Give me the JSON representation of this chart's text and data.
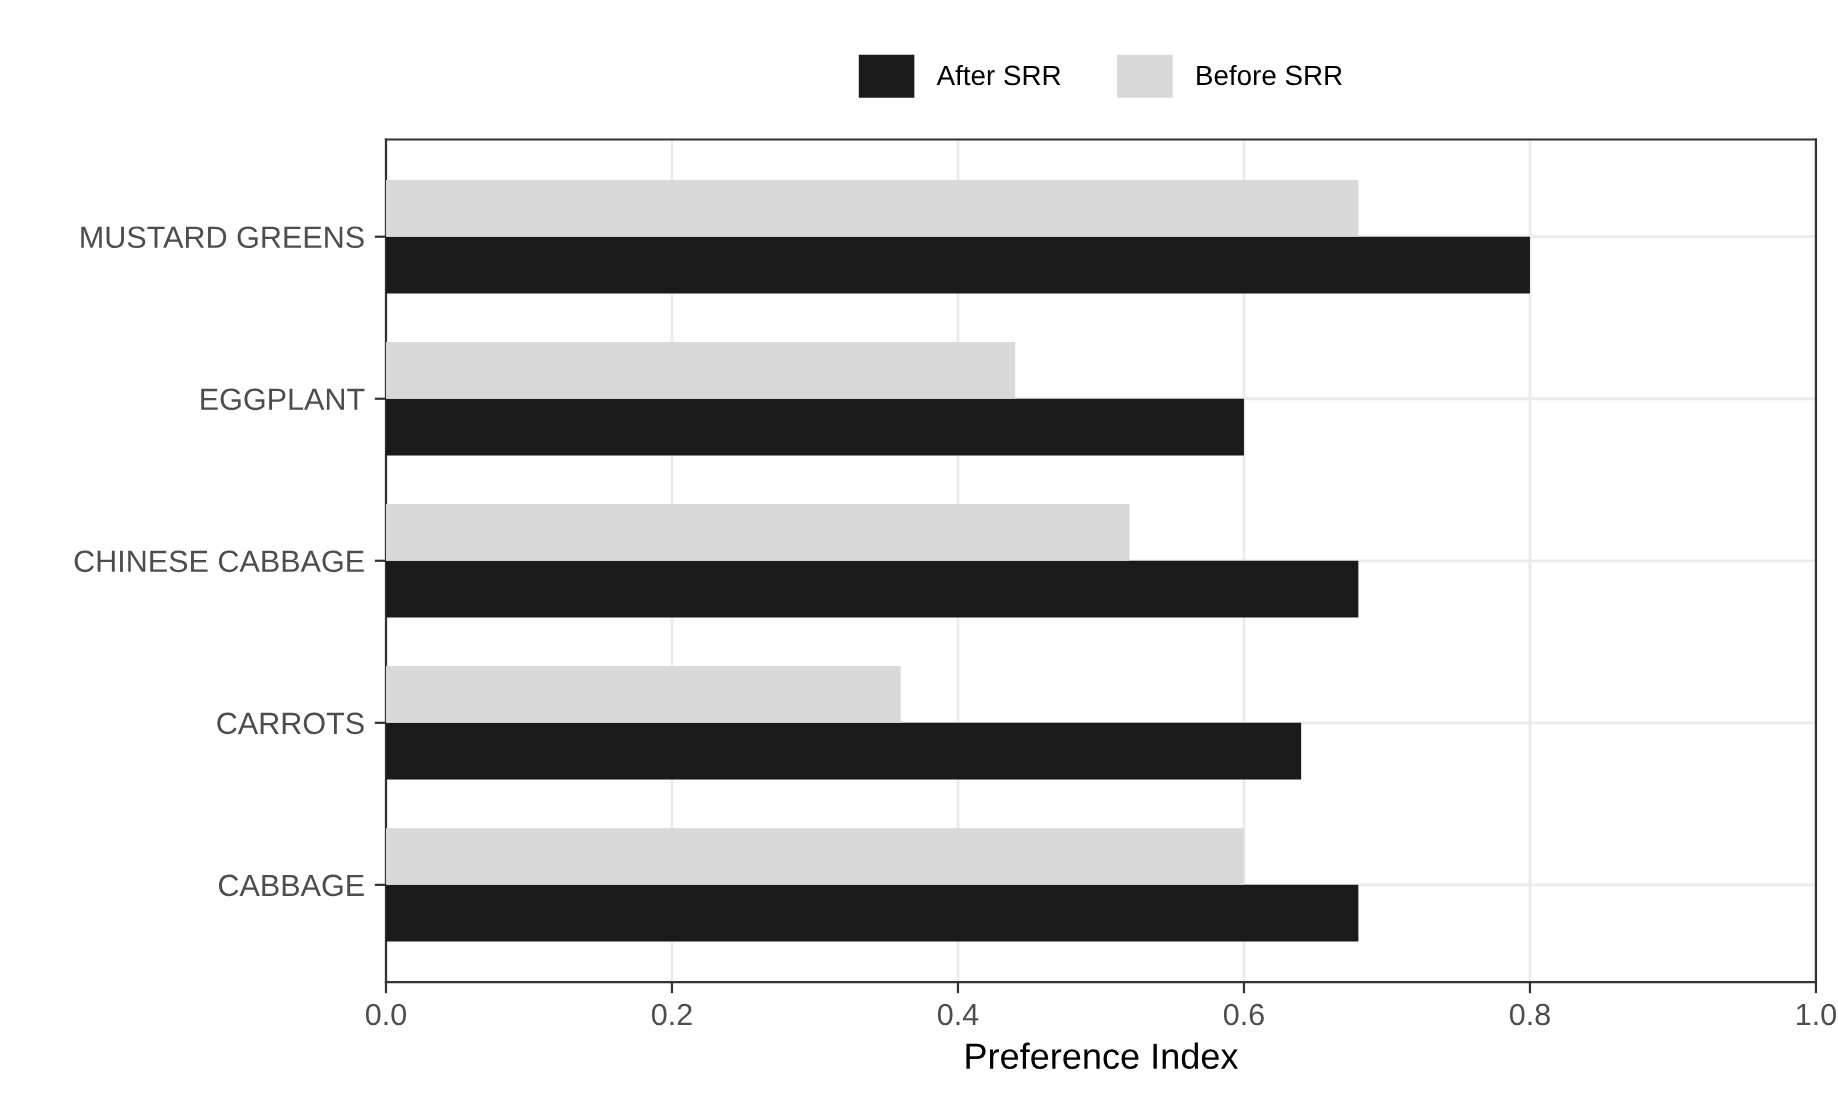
{
  "chart_data": {
    "type": "bar",
    "orientation": "horizontal",
    "xlabel": "Preference Index",
    "categories": [
      "MUSTARD GREENS",
      "EGGPLANT",
      "CHINESE CABBAGE",
      "CARROTS",
      "CABBAGE"
    ],
    "series": [
      {
        "name": "After SRR",
        "color": "#1a1a1a",
        "values": [
          0.8,
          0.6,
          0.68,
          0.64,
          0.68
        ]
      },
      {
        "name": "Before SRR",
        "color": "#d9d9d9",
        "values": [
          0.68,
          0.44,
          0.52,
          0.36,
          0.6
        ]
      }
    ],
    "xlim": [
      0,
      1
    ],
    "xticks": [
      {
        "value": 0,
        "label": "0.0"
      },
      0.2,
      0.4,
      0.6,
      0.8,
      {
        "value": 1,
        "label": "1.0"
      }
    ],
    "grid": true,
    "legend": "top"
  }
}
